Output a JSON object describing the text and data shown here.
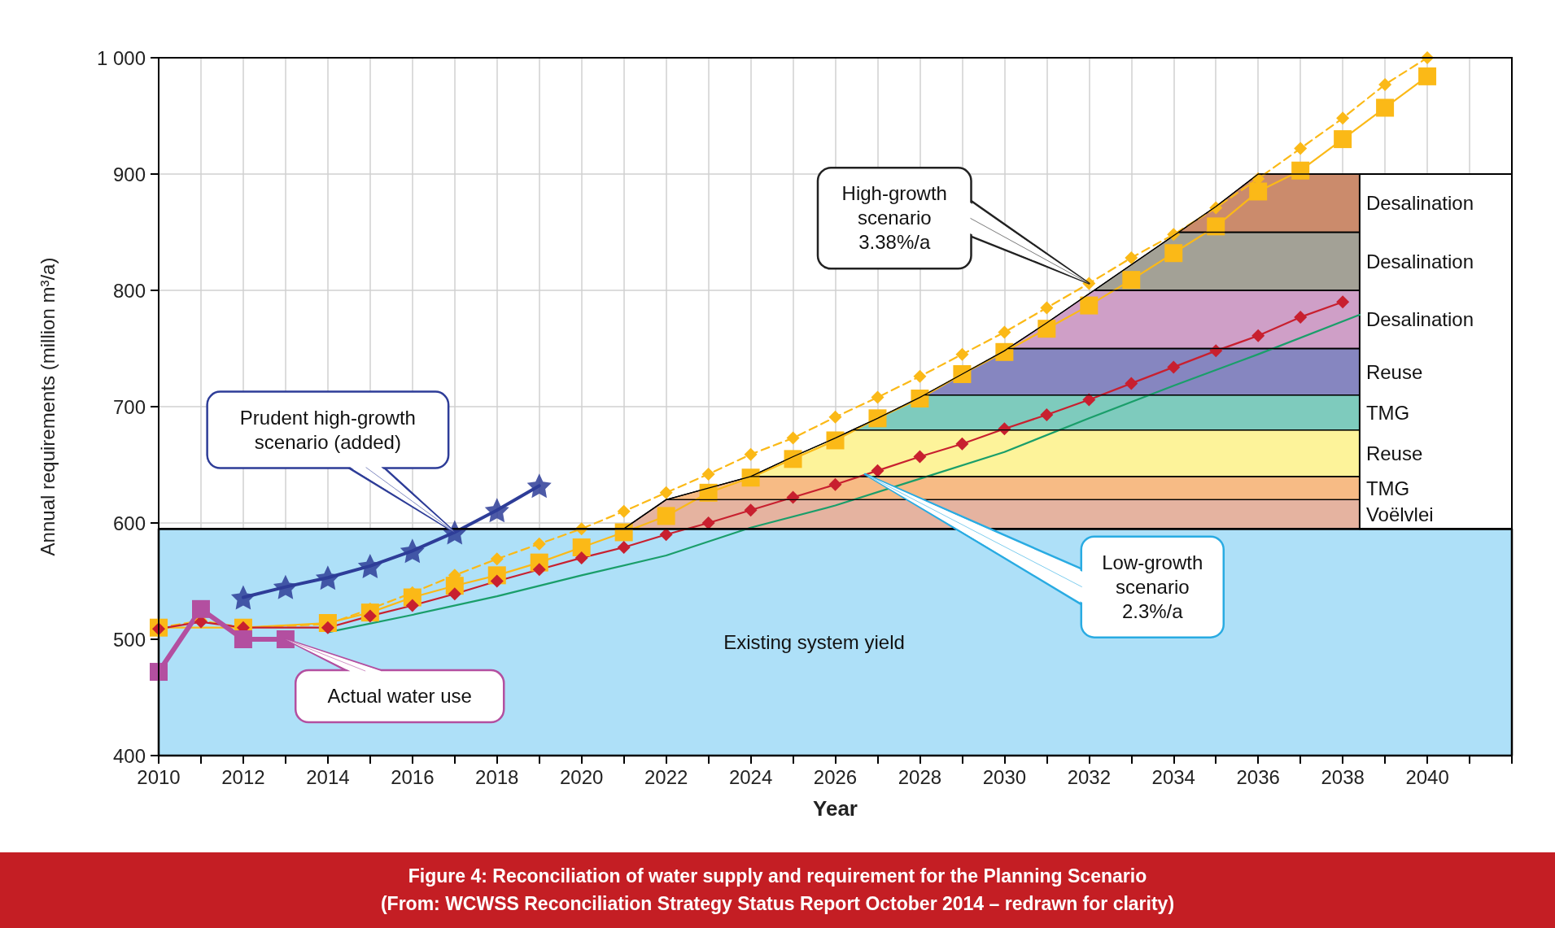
{
  "chart_data": {
    "type": "line",
    "title": "Figure 4: Reconciliation of water supply and requirement for the Planning Scenario",
    "subtitle": "(From: WCWSS Reconciliation Strategy Status Report October 2014 – redrawn for clarity)",
    "xlabel": "Year",
    "ylabel": "Annual requirements (million m³/a)",
    "grid": true,
    "xlim": [
      2010,
      2042
    ],
    "xticks": [
      2010,
      {
        "value": 2011,
        "label": null
      },
      2012,
      {
        "value": 2013,
        "label": null
      },
      2014,
      {
        "value": 2015,
        "label": null
      },
      2016,
      {
        "value": 2017,
        "label": null
      },
      2018,
      {
        "value": 2019,
        "label": null
      },
      2020,
      {
        "value": 2021,
        "label": null
      },
      2022,
      {
        "value": 2023,
        "label": null
      },
      2024,
      {
        "value": 2025,
        "label": null
      },
      2026,
      {
        "value": 2027,
        "label": null
      },
      2028,
      {
        "value": 2029,
        "label": null
      },
      2030,
      {
        "value": 2031,
        "label": null
      },
      2032,
      {
        "value": 2033,
        "label": null
      },
      2034,
      {
        "value": 2035,
        "label": null
      },
      2036,
      {
        "value": 2037,
        "label": null
      },
      2038,
      {
        "value": 2039,
        "label": null
      },
      2040,
      {
        "value": 2041,
        "label": null
      },
      {
        "value": 2042,
        "label": null
      }
    ],
    "ylim": [
      400,
      1000
    ],
    "yticks": [
      400,
      500,
      600,
      700,
      800,
      900,
      {
        "value": 1000,
        "label": "1 000"
      }
    ],
    "series": [
      {
        "type": "area",
        "name": "Existing system yield",
        "color": "#aee0f8",
        "x": [
          2010,
          2042
        ],
        "values": [
          595,
          595
        ]
      },
      {
        "type": "area",
        "name": "Voëlvlei",
        "color": "#e5b3a0",
        "x": [
          2021,
          2022,
          2038.4
        ],
        "values": [
          595,
          620,
          620
        ]
      },
      {
        "type": "area",
        "name": "TMG",
        "color": "#f7bb85",
        "x": [
          2022,
          2023,
          2024,
          2038.4
        ],
        "values": [
          620,
          630,
          640,
          640
        ]
      },
      {
        "type": "area",
        "name": "Reuse",
        "color": "#fdf39a",
        "x": [
          2024,
          2025,
          2026,
          2026.41,
          2038.4
        ],
        "values": [
          640,
          657,
          673,
          680,
          680
        ]
      },
      {
        "type": "area",
        "name": "TMG",
        "color": "#7ecbbd",
        "x": [
          2026.41,
          2027,
          2028,
          2028.1,
          2038.4
        ],
        "values": [
          680,
          690,
          708,
          710,
          710
        ]
      },
      {
        "type": "area",
        "name": "Reuse",
        "color": "#8686c0",
        "x": [
          2028.1,
          2029,
          2030,
          2030.08,
          2038.4
        ],
        "values": [
          710,
          728,
          748,
          750,
          750
        ]
      },
      {
        "type": "area",
        "name": "Desalination",
        "color": "#cf9fc7",
        "x": [
          2030.08,
          2031,
          2032,
          2032.12,
          2038.4
        ],
        "values": [
          750,
          772,
          797,
          800,
          800
        ]
      },
      {
        "type": "area",
        "name": "Desalination",
        "color": "#a3a196",
        "x": [
          2032.12,
          2033,
          2034,
          2034.12,
          2038.4
        ],
        "values": [
          800,
          822,
          847,
          850,
          850
        ]
      },
      {
        "type": "area",
        "name": "Desalination",
        "color": "#cb8b6c",
        "x": [
          2034.12,
          2035,
          2036,
          2038.4
        ],
        "values": [
          850,
          872,
          900,
          900
        ]
      },
      {
        "color": "#1a9e6a",
        "marker": "none",
        "line_style": "solid",
        "x": [
          2014,
          2016,
          2018,
          2020,
          2022,
          2024,
          2026,
          2028,
          2030,
          2032,
          2034,
          2036,
          2038.4
        ],
        "values": [
          506,
          521,
          537,
          555,
          572,
          596,
          615,
          638,
          661,
          690,
          718,
          745,
          779
        ]
      },
      {
        "color": "#fbb917",
        "marker": "square",
        "line_style": "solid",
        "x": [
          2010,
          2011,
          2012,
          2013,
          2014,
          2015,
          2016,
          2017,
          2018,
          2019,
          2020,
          2021,
          2022,
          2023,
          2024,
          2025,
          2026,
          2027,
          2028,
          2029,
          2030,
          2031,
          2032,
          2033,
          2034,
          2035,
          2036,
          2037,
          2038,
          2039,
          2040
        ],
        "values": [
          510,
          null,
          510,
          null,
          514,
          523,
          536,
          546,
          555,
          566,
          579,
          592,
          606,
          626,
          639,
          655,
          671,
          690,
          707,
          728,
          747,
          767,
          787,
          809,
          832,
          855,
          885,
          903,
          930,
          957,
          984
        ]
      },
      {
        "color": "#fbb917",
        "marker": "diamond",
        "line_style": "dashed",
        "x": [
          2010,
          2011,
          2012,
          2013,
          2014,
          2015,
          2016,
          2017,
          2018,
          2019,
          2020,
          2021,
          2022,
          2023,
          2024,
          2025,
          2026,
          2027,
          2028,
          2029,
          2030,
          2031,
          2032,
          2033,
          2034,
          2035,
          2036,
          2037,
          2038,
          2039,
          2040
        ],
        "values": [
          510,
          516,
          510,
          null,
          513,
          526,
          540,
          555,
          569,
          582,
          595,
          610,
          626,
          642,
          659,
          673,
          691,
          708,
          726,
          745,
          764,
          785,
          806,
          828,
          848,
          871,
          896,
          922,
          948,
          977,
          1000
        ]
      },
      {
        "color": "#c8202f",
        "marker": "diamond",
        "line_style": "solid",
        "x": [
          2010,
          2011,
          2012,
          2013,
          2014,
          2015,
          2016,
          2017,
          2018,
          2019,
          2020,
          2021,
          2022,
          2023,
          2024,
          2025,
          2026,
          2027,
          2028,
          2029,
          2030,
          2031,
          2032,
          2033,
          2034,
          2035,
          2036,
          2037,
          2038
        ],
        "values": [
          509,
          515,
          510,
          null,
          510,
          520,
          529,
          539,
          550,
          560,
          570,
          579,
          590,
          600,
          611,
          622,
          633,
          645,
          657,
          668,
          681,
          693,
          706,
          720,
          734,
          748,
          761,
          777,
          790
        ]
      },
      {
        "color": "#2e3d98",
        "marker": "star",
        "line_style": "solid",
        "x": [
          2012,
          2013,
          2014,
          2015,
          2016,
          2017,
          2018,
          2019
        ],
        "values": [
          536,
          545,
          553,
          563,
          576,
          592,
          611,
          632
        ]
      },
      {
        "color": "#b34fa0",
        "marker": "square",
        "line_style": "solid",
        "x": [
          2010,
          2011,
          2012,
          2013
        ],
        "values": [
          472,
          526,
          500,
          500
        ]
      }
    ],
    "annotations": [
      {
        "text": "Prudent high-growth\nscenario (added)",
        "x": 2017,
        "y": 592
      },
      {
        "text": "High-growth\nscenario\n3.38%/a",
        "x": 2032,
        "y": 806
      },
      {
        "text": "Low-growth\nscenario\n2.3%/a",
        "x": 2026.7,
        "y": 642
      },
      {
        "text": "Actual water use",
        "x": 2013,
        "y": 500
      }
    ]
  }
}
